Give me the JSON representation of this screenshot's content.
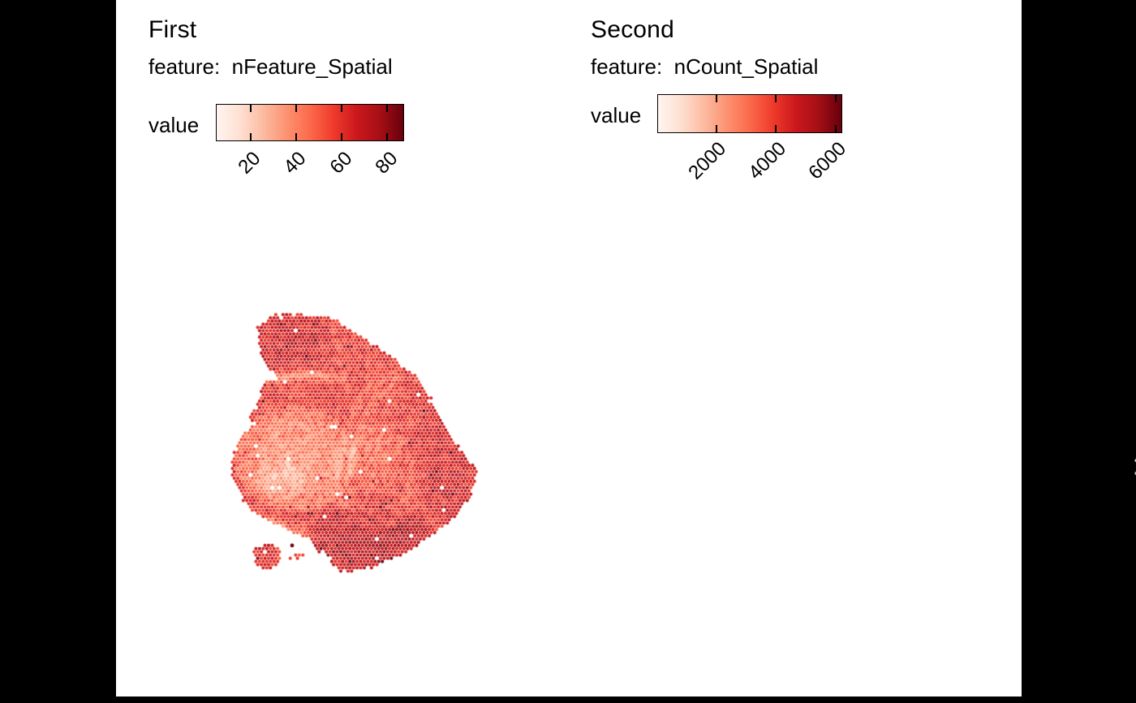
{
  "colors": {
    "background": "#000000",
    "plot_background": "#ffffff",
    "text": "#000000",
    "palette_reds": [
      "#FFF5F0",
      "#FEE0D2",
      "#FCBBA1",
      "#FC9272",
      "#FB6A4A",
      "#EF3B2C",
      "#CB181D",
      "#A50F15",
      "#67000D"
    ]
  },
  "chart_data": {
    "type": "spatial-dotmap",
    "description": "Two hexagonal-spot spatial feature maps of the same sagittal tissue section, colored by feature value with a Reds gradient.",
    "legend_position": "top-left horizontal colorbar",
    "grid": false,
    "shape": {
      "outline": [
        [
          0.105,
          0.047
        ],
        [
          0.176,
          0.01
        ],
        [
          0.284,
          0.005
        ],
        [
          0.414,
          0.026
        ],
        [
          0.49,
          0.073
        ],
        [
          0.577,
          0.124
        ],
        [
          0.675,
          0.192
        ],
        [
          0.75,
          0.254
        ],
        [
          0.794,
          0.316
        ],
        [
          0.832,
          0.389
        ],
        [
          0.864,
          0.451
        ],
        [
          0.924,
          0.534
        ],
        [
          0.984,
          0.601
        ],
        [
          0.967,
          0.679
        ],
        [
          0.924,
          0.751
        ],
        [
          0.859,
          0.813
        ],
        [
          0.772,
          0.876
        ],
        [
          0.675,
          0.933
        ],
        [
          0.566,
          0.974
        ],
        [
          0.469,
          0.995
        ],
        [
          0.42,
          0.984
        ],
        [
          0.393,
          0.927
        ],
        [
          0.349,
          0.912
        ],
        [
          0.317,
          0.865
        ],
        [
          0.284,
          0.855
        ],
        [
          0.252,
          0.839
        ],
        [
          0.17,
          0.803
        ],
        [
          0.078,
          0.762
        ],
        [
          0.04,
          0.699
        ],
        [
          0.008,
          0.632
        ],
        [
          0.008,
          0.56
        ],
        [
          0.035,
          0.492
        ],
        [
          0.056,
          0.461
        ],
        [
          0.089,
          0.44
        ],
        [
          0.073,
          0.399
        ],
        [
          0.1,
          0.368
        ],
        [
          0.121,
          0.337
        ],
        [
          0.127,
          0.275
        ],
        [
          0.187,
          0.249
        ],
        [
          0.149,
          0.212
        ],
        [
          0.121,
          0.161
        ],
        [
          0.111,
          0.098
        ]
      ],
      "island": [
        [
          0.145,
          0.88
        ],
        [
          0.196,
          0.907
        ],
        [
          0.196,
          0.962
        ],
        [
          0.145,
          0.99
        ],
        [
          0.094,
          0.962
        ],
        [
          0.094,
          0.907
        ]
      ],
      "extra_dots": [
        [
          0.235,
          0.938
        ],
        [
          0.262,
          0.938
        ],
        [
          0.284,
          0.927
        ]
      ]
    },
    "curves": {
      "hook": [
        [
          0.635,
          0.265
        ],
        [
          0.555,
          0.315
        ],
        [
          0.5,
          0.425
        ],
        [
          0.475,
          0.5
        ],
        [
          0.458,
          0.575
        ],
        [
          0.447,
          0.65
        ],
        [
          0.464,
          0.715
        ],
        [
          0.52,
          0.775
        ],
        [
          0.585,
          0.8
        ]
      ],
      "outer_arc": [
        [
          0.66,
          0.44
        ],
        [
          0.72,
          0.56
        ],
        [
          0.71,
          0.7
        ],
        [
          0.64,
          0.8
        ]
      ],
      "upper_ext": [
        [
          0.66,
          0.22
        ],
        [
          0.6,
          0.27
        ],
        [
          0.545,
          0.33
        ]
      ],
      "left_inner": [
        [
          0.385,
          0.47
        ],
        [
          0.372,
          0.56
        ],
        [
          0.38,
          0.645
        ]
      ],
      "upper_band": [
        [
          0.1,
          0.255
        ],
        [
          0.28,
          0.235
        ],
        [
          0.45,
          0.25
        ]
      ],
      "tail_band": [
        [
          0.06,
          0.77
        ],
        [
          0.2,
          0.815
        ],
        [
          0.33,
          0.86
        ]
      ],
      "bottom_band": [
        [
          0.33,
          0.93
        ],
        [
          0.52,
          0.985
        ],
        [
          0.73,
          0.92
        ]
      ]
    },
    "panels": [
      {
        "title": "First",
        "subtitle": "feature:  nFeature_Spatial",
        "feature": "nFeature_Spatial",
        "legend_label": "value",
        "scale": {
          "domain": [
            5,
            87
          ],
          "ticks": [
            20,
            40,
            60,
            80
          ]
        },
        "seed": 7,
        "field": {
          "base": 60,
          "noise": 13,
          "clamp": [
            7,
            87
          ],
          "spike_p": 0.02,
          "spike": 18,
          "dropout": 0.008,
          "regions": [
            {
              "type": "ellipse",
              "cx": 0.26,
              "cy": 0.56,
              "rx": 0.24,
              "ry": 0.2,
              "delta": -22
            },
            {
              "type": "ellipse",
              "cx": 0.2,
              "cy": 0.645,
              "rx": 0.1,
              "ry": 0.075,
              "delta": -12
            },
            {
              "type": "curve",
              "ref": "upper_band",
              "width": 0.035,
              "delta": -19
            },
            {
              "type": "curve",
              "ref": "tail_band",
              "width": 0.028,
              "delta": -17
            },
            {
              "type": "ellipse",
              "cx": 0.56,
              "cy": 0.875,
              "rx": 0.28,
              "ry": 0.135,
              "delta": 13
            },
            {
              "type": "ellipse",
              "cx": 0.57,
              "cy": 0.55,
              "rx": 0.11,
              "ry": 0.14,
              "delta": -13
            },
            {
              "type": "curve",
              "ref": "hook",
              "width": 0.055,
              "delta": -15
            },
            {
              "type": "curve",
              "ref": "hook",
              "width": 0.015,
              "delta": 19
            },
            {
              "type": "curve",
              "ref": "outer_arc",
              "width": 0.03,
              "delta": -9
            },
            {
              "type": "ellipse",
              "cx": 0.21,
              "cy": 0.1,
              "rx": 0.19,
              "ry": 0.13,
              "delta": 7
            },
            {
              "type": "ellipse",
              "cx": 0.88,
              "cy": 0.56,
              "rx": 0.13,
              "ry": 0.26,
              "delta": 5
            }
          ]
        },
        "explicit_dots": [
          {
            "u": 0.246,
            "v": 0.891,
            "value": 86
          }
        ]
      },
      {
        "title": "Second",
        "subtitle": "feature:  nCount_Spatial",
        "feature": "nCount_Spatial",
        "legend_label": "value",
        "scale": {
          "domain": [
            30,
            6200
          ],
          "ticks": [
            2000,
            4000,
            6000
          ]
        },
        "seed": 13,
        "field": {
          "base": 700,
          "noise": 380,
          "clamp": [
            120,
            6200
          ],
          "spike_p": 0.012,
          "spike": 1500,
          "dropout": 0.015,
          "regions": [
            {
              "type": "curve",
              "ref": "hook",
              "width": 0.016,
              "delta": 3300
            },
            {
              "type": "curve",
              "ref": "hook",
              "width": 0.05,
              "delta": 650
            },
            {
              "type": "curve",
              "ref": "outer_arc",
              "width": 0.035,
              "delta": 800
            },
            {
              "type": "curve",
              "ref": "upper_ext",
              "width": 0.025,
              "delta": 700
            },
            {
              "type": "ellipse",
              "cx": 0.45,
              "cy": 0.12,
              "rx": 0.48,
              "ry": 0.15,
              "delta": 280
            },
            {
              "type": "curve",
              "ref": "left_inner",
              "width": 0.022,
              "delta": 500
            },
            {
              "type": "ellipse",
              "cx": 0.62,
              "cy": 0.88,
              "rx": 0.3,
              "ry": 0.13,
              "delta": 320
            },
            {
              "type": "curve",
              "ref": "bottom_band",
              "width": 0.03,
              "delta": 350
            }
          ]
        },
        "explicit_dots": [
          {
            "u": 0.219,
            "v": 0.877,
            "value": 5300
          },
          {
            "u": 0.222,
            "v": 0.905,
            "value": 6200
          },
          {
            "u": 0.3,
            "v": 0.86,
            "value": 2600
          }
        ]
      }
    ]
  }
}
